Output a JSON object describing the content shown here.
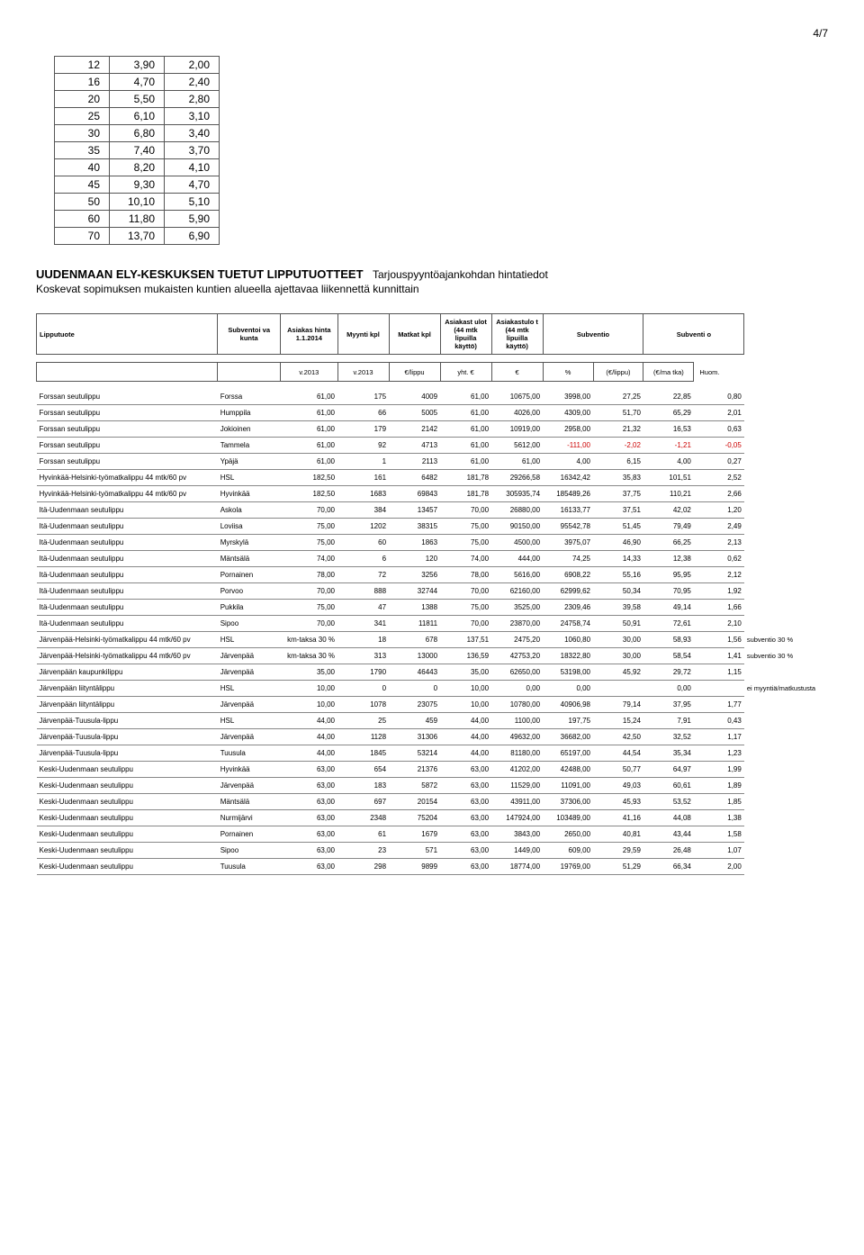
{
  "page_number": "4/7",
  "small_table_rows": [
    [
      "12",
      "3,90",
      "2,00"
    ],
    [
      "16",
      "4,70",
      "2,40"
    ],
    [
      "20",
      "5,50",
      "2,80"
    ],
    [
      "25",
      "6,10",
      "3,10"
    ],
    [
      "30",
      "6,80",
      "3,40"
    ],
    [
      "35",
      "7,40",
      "3,70"
    ],
    [
      "40",
      "8,20",
      "4,10"
    ],
    [
      "45",
      "9,30",
      "4,70"
    ],
    [
      "50",
      "10,10",
      "5,10"
    ],
    [
      "60",
      "11,80",
      "5,90"
    ],
    [
      "70",
      "13,70",
      "6,90"
    ]
  ],
  "section_title": "UUDENMAAN ELY-KESKUKSEN TUETUT LIPPUTUOTTEET",
  "section_sub1": "Tarjouspyyntöajankohdan hintatiedot",
  "section_sub2": "Koskevat sopimuksen mukaisten kuntien alueella ajettavaa liikennettä kunnittain",
  "headers": {
    "c0": "Lipputuote",
    "c1": "Subventoi va kunta",
    "c2": "Asiakas hinta 1.1.2014",
    "c3": "Myynti kpl",
    "c4": "Matkat kpl",
    "c5": "Asiakast ulot (44 mtk lipuilla käyttö)",
    "c6": "Asiakastulo t (44 mtk lipuilla käyttö)",
    "c7": "Subventio",
    "c8": "Subventi o"
  },
  "sub_headers": {
    "s2": "v.2013",
    "s3": "v.2013",
    "s4": "€/lippu",
    "s5": "yht. €",
    "s6": "€",
    "s7": "%",
    "s8": "(€/lippu)",
    "s9": "(€/ma tka)",
    "s10": "Huom."
  },
  "rows": [
    {
      "p": "Forssan seutulippu",
      "k": "Forssa",
      "v": [
        "61,00",
        "175",
        "4009",
        "61,00",
        "10675,00",
        "3998,00",
        "27,25",
        "22,85",
        "0,80"
      ],
      "neg": []
    },
    {
      "p": "Forssan seutulippu",
      "k": "Humppila",
      "v": [
        "61,00",
        "66",
        "5005",
        "61,00",
        "4026,00",
        "4309,00",
        "51,70",
        "65,29",
        "2,01"
      ],
      "neg": []
    },
    {
      "p": "Forssan seutulippu",
      "k": "Jokioinen",
      "v": [
        "61,00",
        "179",
        "2142",
        "61,00",
        "10919,00",
        "2958,00",
        "21,32",
        "16,53",
        "0,63"
      ],
      "neg": []
    },
    {
      "p": "Forssan seutulippu",
      "k": "Tammela",
      "v": [
        "61,00",
        "92",
        "4713",
        "61,00",
        "5612,00",
        "-111,00",
        "-2,02",
        "-1,21",
        "-0,05"
      ],
      "neg": [
        5,
        6,
        7,
        8
      ]
    },
    {
      "p": "Forssan seutulippu",
      "k": "Ypäjä",
      "v": [
        "61,00",
        "1",
        "2113",
        "61,00",
        "61,00",
        "4,00",
        "6,15",
        "4,00",
        "0,27"
      ],
      "neg": []
    },
    {
      "p": "Hyvinkää-Helsinki-työmatkalippu 44 mtk/60 pv",
      "k": "HSL",
      "v": [
        "182,50",
        "161",
        "6482",
        "181,78",
        "29266,58",
        "16342,42",
        "35,83",
        "101,51",
        "2,52"
      ],
      "neg": []
    },
    {
      "p": "Hyvinkää-Helsinki-työmatkalippu 44 mtk/60 pv",
      "k": "Hyvinkää",
      "v": [
        "182,50",
        "1683",
        "69843",
        "181,78",
        "305935,74",
        "185489,26",
        "37,75",
        "110,21",
        "2,66"
      ],
      "neg": []
    },
    {
      "p": "Itä-Uudenmaan seutulippu",
      "k": "Askola",
      "v": [
        "70,00",
        "384",
        "13457",
        "70,00",
        "26880,00",
        "16133,77",
        "37,51",
        "42,02",
        "1,20"
      ],
      "neg": []
    },
    {
      "p": "Itä-Uudenmaan seutulippu",
      "k": "Loviisa",
      "v": [
        "75,00",
        "1202",
        "38315",
        "75,00",
        "90150,00",
        "95542,78",
        "51,45",
        "79,49",
        "2,49"
      ],
      "neg": []
    },
    {
      "p": "Itä-Uudenmaan seutulippu",
      "k": "Myrskylä",
      "v": [
        "75,00",
        "60",
        "1863",
        "75,00",
        "4500,00",
        "3975,07",
        "46,90",
        "66,25",
        "2,13"
      ],
      "neg": []
    },
    {
      "p": "Itä-Uudenmaan seutulippu",
      "k": "Mäntsälä",
      "v": [
        "74,00",
        "6",
        "120",
        "74,00",
        "444,00",
        "74,25",
        "14,33",
        "12,38",
        "0,62"
      ],
      "neg": []
    },
    {
      "p": "Itä-Uudenmaan seutulippu",
      "k": "Pornainen",
      "v": [
        "78,00",
        "72",
        "3256",
        "78,00",
        "5616,00",
        "6908,22",
        "55,16",
        "95,95",
        "2,12"
      ],
      "neg": []
    },
    {
      "p": "Itä-Uudenmaan seutulippu",
      "k": "Porvoo",
      "v": [
        "70,00",
        "888",
        "32744",
        "70,00",
        "62160,00",
        "62999,62",
        "50,34",
        "70,95",
        "1,92"
      ],
      "neg": []
    },
    {
      "p": "Itä-Uudenmaan seutulippu",
      "k": "Pukkila",
      "v": [
        "75,00",
        "47",
        "1388",
        "75,00",
        "3525,00",
        "2309,46",
        "39,58",
        "49,14",
        "1,66"
      ],
      "neg": []
    },
    {
      "p": "Itä-Uudenmaan seutulippu",
      "k": "Sipoo",
      "v": [
        "70,00",
        "341",
        "11811",
        "70,00",
        "23870,00",
        "24758,74",
        "50,91",
        "72,61",
        "2,10"
      ],
      "neg": []
    },
    {
      "p": "Järvenpää-Helsinki-työmatkalippu 44 mtk/60 pv",
      "k": "HSL",
      "v": [
        "km-taksa 30 %",
        "18",
        "678",
        "137,51",
        "2475,20",
        "1060,80",
        "30,00",
        "58,93",
        "1,56"
      ],
      "neg": [],
      "note": "subventio 30 %"
    },
    {
      "p": "Järvenpää-Helsinki-työmatkalippu 44 mtk/60 pv",
      "k": "Järvenpää",
      "v": [
        "km-taksa 30 %",
        "313",
        "13000",
        "136,59",
        "42753,20",
        "18322,80",
        "30,00",
        "58,54",
        "1,41"
      ],
      "neg": [],
      "note": "subventio 30 %"
    },
    {
      "p": "Järvenpään kaupunkilippu",
      "k": "Järvenpää",
      "v": [
        "35,00",
        "1790",
        "46443",
        "35,00",
        "62650,00",
        "53198,00",
        "45,92",
        "29,72",
        "1,15"
      ],
      "neg": []
    },
    {
      "p": "Järvenpään liityntälippu",
      "k": "HSL",
      "v": [
        "10,00",
        "0",
        "0",
        "10,00",
        "0,00",
        "0,00",
        "",
        "0,00",
        ""
      ],
      "neg": [],
      "note": "ei myyntiä/matkustusta"
    },
    {
      "p": "Järvenpään liityntälippu",
      "k": "Järvenpää",
      "v": [
        "10,00",
        "1078",
        "23075",
        "10,00",
        "10780,00",
        "40906,98",
        "79,14",
        "37,95",
        "1,77"
      ],
      "neg": []
    },
    {
      "p": "Järvenpää-Tuusula-lippu",
      "k": "HSL",
      "v": [
        "44,00",
        "25",
        "459",
        "44,00",
        "1100,00",
        "197,75",
        "15,24",
        "7,91",
        "0,43"
      ],
      "neg": []
    },
    {
      "p": "Järvenpää-Tuusula-lippu",
      "k": "Järvenpää",
      "v": [
        "44,00",
        "1128",
        "31306",
        "44,00",
        "49632,00",
        "36682,00",
        "42,50",
        "32,52",
        "1,17"
      ],
      "neg": []
    },
    {
      "p": "Järvenpää-Tuusula-lippu",
      "k": "Tuusula",
      "v": [
        "44,00",
        "1845",
        "53214",
        "44,00",
        "81180,00",
        "65197,00",
        "44,54",
        "35,34",
        "1,23"
      ],
      "neg": []
    },
    {
      "p": "Keski-Uudenmaan seutulippu",
      "k": "Hyvinkää",
      "v": [
        "63,00",
        "654",
        "21376",
        "63,00",
        "41202,00",
        "42488,00",
        "50,77",
        "64,97",
        "1,99"
      ],
      "neg": []
    },
    {
      "p": "Keski-Uudenmaan seutulippu",
      "k": "Järvenpää",
      "v": [
        "63,00",
        "183",
        "5872",
        "63,00",
        "11529,00",
        "11091,00",
        "49,03",
        "60,61",
        "1,89"
      ],
      "neg": []
    },
    {
      "p": "Keski-Uudenmaan seutulippu",
      "k": "Mäntsälä",
      "v": [
        "63,00",
        "697",
        "20154",
        "63,00",
        "43911,00",
        "37306,00",
        "45,93",
        "53,52",
        "1,85"
      ],
      "neg": []
    },
    {
      "p": "Keski-Uudenmaan seutulippu",
      "k": "Nurmijärvi",
      "v": [
        "63,00",
        "2348",
        "75204",
        "63,00",
        "147924,00",
        "103489,00",
        "41,16",
        "44,08",
        "1,38"
      ],
      "neg": []
    },
    {
      "p": "Keski-Uudenmaan seutulippu",
      "k": "Pornainen",
      "v": [
        "63,00",
        "61",
        "1679",
        "63,00",
        "3843,00",
        "2650,00",
        "40,81",
        "43,44",
        "1,58"
      ],
      "neg": []
    },
    {
      "p": "Keski-Uudenmaan seutulippu",
      "k": "Sipoo",
      "v": [
        "63,00",
        "23",
        "571",
        "63,00",
        "1449,00",
        "609,00",
        "29,59",
        "26,48",
        "1,07"
      ],
      "neg": []
    },
    {
      "p": "Keski-Uudenmaan seutulippu",
      "k": "Tuusula",
      "v": [
        "63,00",
        "298",
        "9899",
        "63,00",
        "18774,00",
        "19769,00",
        "51,29",
        "66,34",
        "2,00"
      ],
      "neg": []
    }
  ]
}
